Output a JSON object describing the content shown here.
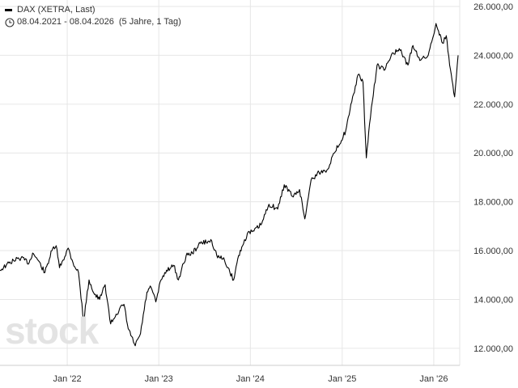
{
  "legend": {
    "series_name": "DAX (XETRA, Last)",
    "range": "08.04.2021 - 08.04.2026",
    "period": "(5 Jahre, 1 Tag)",
    "clock_icon": "clock-icon"
  },
  "watermark": "stock",
  "colors": {
    "line": "#000000",
    "grid": "#e6e6e6",
    "text": "#333333",
    "watermark": "#e3e3e3"
  },
  "chart_data": {
    "type": "line",
    "title": "DAX (XETRA, Last)",
    "xlabel": "",
    "ylabel": "",
    "x_range": [
      "2021-04-08",
      "2026-04-08"
    ],
    "ylim": [
      11300,
      26000
    ],
    "y_ticks": [
      12000,
      14000,
      16000,
      18000,
      20000,
      22000,
      24000,
      26000
    ],
    "y_tick_labels": [
      "12.000,00",
      "14.000,00",
      "16.000,00",
      "18.000,00",
      "20.000,00",
      "22.000,00",
      "24.000,00",
      "26.000,00"
    ],
    "x_ticks": [
      "2022-01-01",
      "2023-01-01",
      "2024-01-01",
      "2025-01-01",
      "2026-01-01"
    ],
    "x_tick_labels": [
      "Jan '22",
      "Jan '23",
      "Jan '24",
      "Jan '25",
      "Jan '26"
    ],
    "grid": true,
    "series": [
      {
        "name": "DAX (XETRA, Last)",
        "x": [
          "2021-04-08",
          "2021-05-03",
          "2021-06-01",
          "2021-07-01",
          "2021-08-02",
          "2021-08-16",
          "2021-09-01",
          "2021-10-04",
          "2021-11-01",
          "2021-11-18",
          "2021-12-01",
          "2022-01-05",
          "2022-01-24",
          "2022-02-15",
          "2022-03-07",
          "2022-03-29",
          "2022-04-20",
          "2022-05-10",
          "2022-06-01",
          "2022-06-23",
          "2022-07-15",
          "2022-08-15",
          "2022-09-01",
          "2022-09-29",
          "2022-10-20",
          "2022-11-15",
          "2022-12-01",
          "2022-12-20",
          "2023-01-10",
          "2023-02-01",
          "2023-03-01",
          "2023-03-20",
          "2023-04-20",
          "2023-05-15",
          "2023-06-15",
          "2023-07-31",
          "2023-08-20",
          "2023-09-20",
          "2023-10-26",
          "2023-11-15",
          "2023-12-01",
          "2023-12-20",
          "2024-01-15",
          "2024-02-15",
          "2024-03-15",
          "2024-04-19",
          "2024-05-15",
          "2024-06-20",
          "2024-07-15",
          "2024-08-05",
          "2024-08-30",
          "2024-10-01",
          "2024-11-01",
          "2024-12-01",
          "2025-01-15",
          "2025-02-15",
          "2025-03-05",
          "2025-03-25",
          "2025-04-07",
          "2025-04-20",
          "2025-05-20",
          "2025-06-20",
          "2025-07-20",
          "2025-08-20",
          "2025-09-20",
          "2025-10-10",
          "2025-11-10",
          "2025-12-10",
          "2026-01-10",
          "2026-01-20",
          "2026-02-05",
          "2026-02-20",
          "2026-03-05",
          "2026-03-18",
          "2026-03-25",
          "2026-04-01",
          "2026-04-08"
        ],
        "values": [
          15200,
          15400,
          15600,
          15700,
          15500,
          15900,
          15700,
          15100,
          16000,
          16200,
          15300,
          16100,
          15500,
          15100,
          13100,
          14800,
          14200,
          14000,
          14600,
          13000,
          13400,
          13800,
          12800,
          12100,
          12600,
          14300,
          14500,
          13900,
          14800,
          15200,
          15400,
          14800,
          15800,
          15900,
          16300,
          16400,
          15800,
          15600,
          14800,
          15800,
          16200,
          16700,
          16800,
          17100,
          17900,
          17700,
          18700,
          18200,
          18500,
          17300,
          18900,
          19200,
          19300,
          20000,
          20900,
          22400,
          23200,
          22900,
          19800,
          21200,
          23600,
          23400,
          24100,
          24200,
          23600,
          24400,
          23800,
          24000,
          25300,
          25000,
          24500,
          24800,
          23600,
          22800,
          22300,
          23100,
          24000
        ]
      }
    ]
  }
}
